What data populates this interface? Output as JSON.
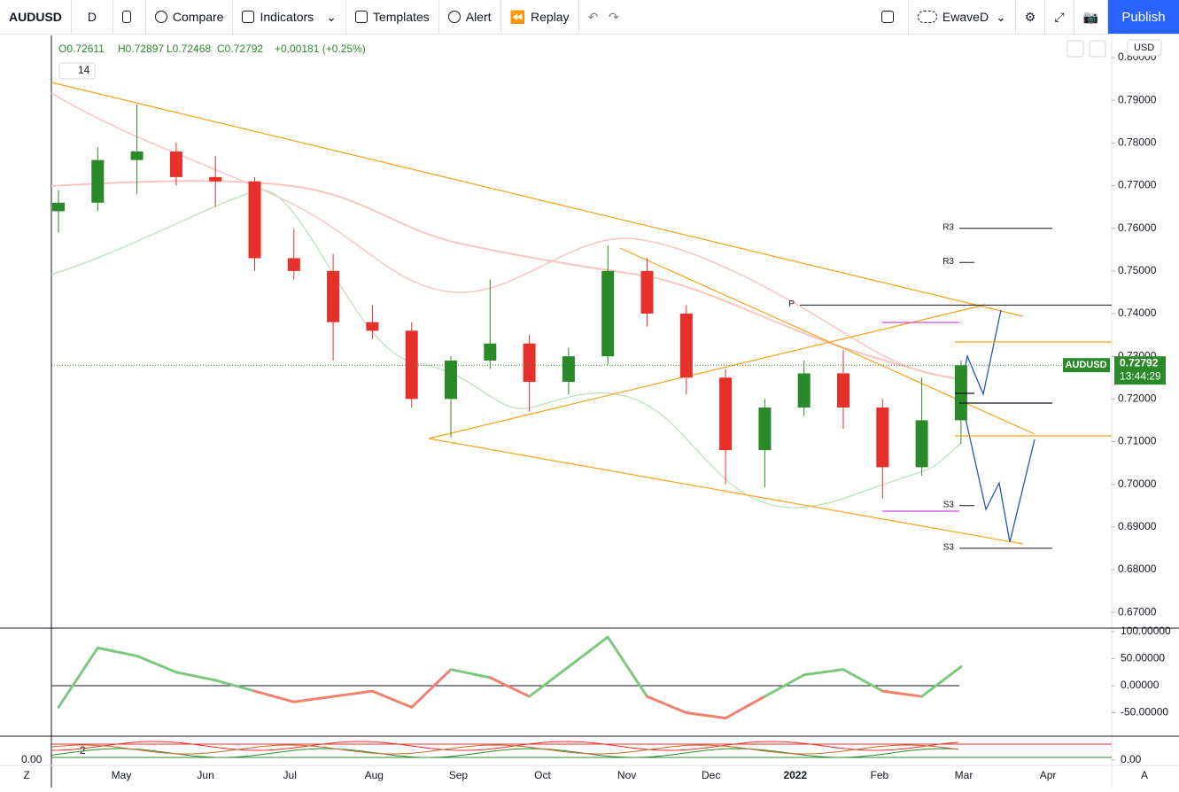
{
  "toolbar": {
    "symbol": "AUDUSD",
    "interval": "D",
    "compare": "Compare",
    "indicators": "Indicators",
    "templates": "Templates",
    "alert": "Alert",
    "replay": "Replay",
    "layout": "EwaveD",
    "publish": "Publish"
  },
  "legend": {
    "open": "O0.72611",
    "high": "H0.72897",
    "low": "L0.72468",
    "close": "C0.72792",
    "change": "+0.00181 (+0.25%)",
    "study_length": "14"
  },
  "currency": "USD",
  "corner_left": "Z",
  "corner_right": "A",
  "chart_data": {
    "type": "candlestick",
    "title": "AUDUSD",
    "up_color": "#2a8a2a",
    "down_color": "#e8302a",
    "open": [
      0.764,
      0.766,
      0.776,
      0.778,
      0.772,
      0.771,
      0.753,
      0.75,
      0.738,
      0.736,
      0.72,
      0.729,
      0.733,
      0.724,
      0.73,
      0.75,
      0.74,
      0.725,
      0.708,
      0.718,
      0.726,
      0.718,
      0.704,
      0.715
    ],
    "high": [
      0.769,
      0.779,
      0.789,
      0.78,
      0.777,
      0.772,
      0.76,
      0.754,
      0.742,
      0.738,
      0.73,
      0.748,
      0.735,
      0.732,
      0.756,
      0.753,
      0.742,
      0.727,
      0.72,
      0.729,
      0.7315,
      0.72,
      0.725,
      0.729
    ],
    "low": [
      0.759,
      0.764,
      0.768,
      0.77,
      0.765,
      0.75,
      0.748,
      0.729,
      0.734,
      0.718,
      0.711,
      0.727,
      0.717,
      0.721,
      0.728,
      0.737,
      0.721,
      0.7,
      0.6993,
      0.716,
      0.713,
      0.6967,
      0.702,
      0.7094
    ],
    "close": [
      0.766,
      0.776,
      0.778,
      0.772,
      0.771,
      0.753,
      0.75,
      0.738,
      0.736,
      0.72,
      0.729,
      0.733,
      0.724,
      0.73,
      0.75,
      0.74,
      0.725,
      0.708,
      0.718,
      0.726,
      0.718,
      0.704,
      0.715,
      0.7279
    ],
    "xtick_labels": [
      "May",
      "Jun",
      "Jul",
      "Aug",
      "Sep",
      "Oct",
      "Nov",
      "Dec",
      "2022",
      "Feb",
      "Mar",
      "Apr"
    ],
    "ylim": [
      0.6665,
      0.8052
    ],
    "yticks": [
      {
        "value": 0.67,
        "label": "0.67000"
      },
      {
        "value": 0.68,
        "label": "0.68000"
      },
      {
        "value": 0.69,
        "label": "0.69000"
      },
      {
        "value": 0.7,
        "label": "0.70000"
      },
      {
        "value": 0.71,
        "label": "0.71000"
      },
      {
        "value": 0.72,
        "label": "0.72000"
      },
      {
        "value": 0.73,
        "label": "0.73000"
      },
      {
        "value": 0.74,
        "label": "0.74000"
      },
      {
        "value": 0.75,
        "label": "0.75000"
      },
      {
        "value": 0.76,
        "label": "0.76000"
      },
      {
        "value": 0.77,
        "label": "0.77000"
      },
      {
        "value": 0.78,
        "label": "0.78000"
      },
      {
        "value": 0.79,
        "label": "0.79000"
      },
      {
        "value": 0.8,
        "label": "0.80000"
      }
    ],
    "last_price": 0.72792,
    "countdown": "13:44:29",
    "levels": [
      {
        "label": "R3",
        "value": 0.76
      },
      {
        "label": "R3",
        "value": 0.752
      },
      {
        "label": "P",
        "value": 0.742
      },
      {
        "label": "S3",
        "value": 0.695
      },
      {
        "label": "S3",
        "value": 0.685
      }
    ],
    "indicator": {
      "type": "line",
      "values": [
        -40,
        70,
        55,
        25,
        10,
        -10,
        -30,
        -20,
        -10,
        -40,
        30,
        15,
        -20,
        35,
        90,
        -20,
        -50,
        -60,
        -20,
        20,
        30,
        -10,
        -20,
        35
      ],
      "ylim": [
        -91.8,
        104.9
      ],
      "yticks": [
        {
          "value": 100,
          "label": "100.00000"
        },
        {
          "value": 50,
          "label": "50.00000"
        },
        {
          "value": 0,
          "label": "0.00000"
        },
        {
          "value": -50,
          "label": "-50.00000"
        }
      ]
    },
    "oscillator": {
      "label": "2",
      "yticks": [
        {
          "value": 0,
          "label": "0.00"
        }
      ]
    }
  }
}
